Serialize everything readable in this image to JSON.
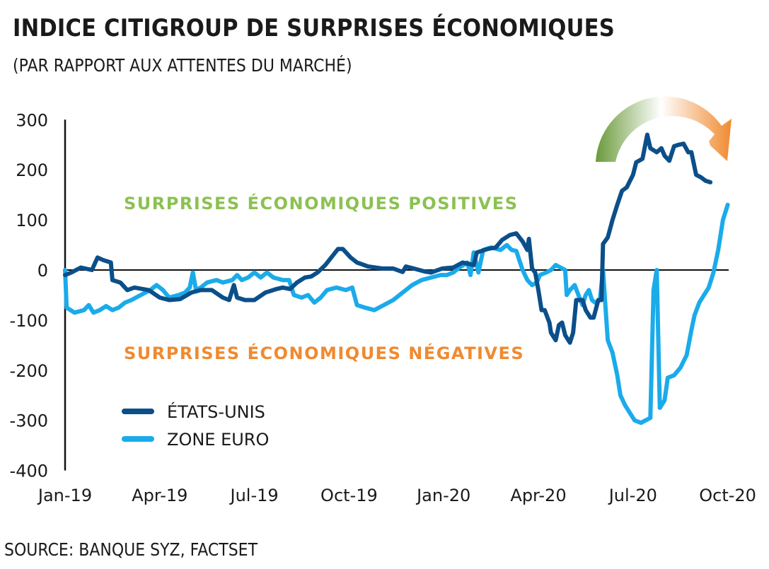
{
  "header": {
    "title": "INDICE CITIGROUP DE SURPRISES ÉCONOMIQUES",
    "subtitle": "(PAR RAPPORT AUX ATTENTES DU MARCHÉ)"
  },
  "footer": {
    "source": "SOURCE: BANQUE SYZ, FACTSET"
  },
  "annotations": {
    "positive": "SURPRISES ÉCONOMIQUES POSITIVES",
    "negative": "SURPRISES ÉCONOMIQUES NÉGATIVES",
    "positive_color": "#8cc152",
    "negative_color": "#f08a30",
    "arrow_icon": "curved-arrow-green-to-orange",
    "arrow_start_color": "#6a9a3a",
    "arrow_end_color": "#f08a30"
  },
  "chart_data": {
    "type": "line",
    "title": "INDICE CITIGROUP DE SURPRISES ÉCONOMIQUES",
    "subtitle": "(PAR RAPPORT AUX ATTENTES DU MARCHÉ)",
    "xlabel": "",
    "ylabel": "",
    "x_unit": "months since Jan-2019",
    "xlim": [
      0,
      21
    ],
    "ylim": [
      -400,
      300
    ],
    "yticks": [
      300,
      200,
      100,
      0,
      -100,
      -200,
      -300,
      -400
    ],
    "ytick_labels": [
      "300",
      "200",
      "100",
      "0",
      "-100",
      "-200",
      "-300",
      "-400"
    ],
    "xticks": [
      0,
      3,
      6,
      9,
      12,
      15,
      18,
      21
    ],
    "xtick_labels": [
      "Jan-19",
      "Apr-19",
      "Jul-19",
      "Oct-19",
      "Jan-20",
      "Apr-20",
      "Jul-20",
      "Oct-20"
    ],
    "grid": false,
    "zero_line": true,
    "legend": {
      "position": "bottom-left"
    },
    "series": [
      {
        "name": "ÉTATS-UNIS",
        "color": "#0b4f8a",
        "points": [
          [
            0,
            -10
          ],
          [
            0.2,
            -5
          ],
          [
            0.5,
            5
          ],
          [
            0.85,
            0
          ],
          [
            1.03,
            25
          ],
          [
            1.2,
            20
          ],
          [
            1.45,
            15
          ],
          [
            1.5,
            -20
          ],
          [
            1.75,
            -25
          ],
          [
            1.97,
            -40
          ],
          [
            2.2,
            -35
          ],
          [
            2.65,
            -40
          ],
          [
            3.0,
            -55
          ],
          [
            3.3,
            -60
          ],
          [
            3.65,
            -58
          ],
          [
            4.0,
            -45
          ],
          [
            4.3,
            -40
          ],
          [
            4.65,
            -40
          ],
          [
            5.0,
            -55
          ],
          [
            5.2,
            -60
          ],
          [
            5.35,
            -30
          ],
          [
            5.45,
            -55
          ],
          [
            5.7,
            -60
          ],
          [
            6.0,
            -60
          ],
          [
            6.35,
            -45
          ],
          [
            6.7,
            -38
          ],
          [
            6.9,
            -35
          ],
          [
            7.13,
            -38
          ],
          [
            7.35,
            -25
          ],
          [
            7.6,
            -15
          ],
          [
            7.8,
            -13
          ],
          [
            8.0,
            -5
          ],
          [
            8.25,
            10
          ],
          [
            8.5,
            30
          ],
          [
            8.65,
            42
          ],
          [
            8.8,
            42
          ],
          [
            9.05,
            25
          ],
          [
            9.25,
            15
          ],
          [
            9.6,
            7
          ],
          [
            10.05,
            3
          ],
          [
            10.4,
            3
          ],
          [
            10.7,
            -4
          ],
          [
            10.8,
            7
          ],
          [
            11.05,
            3
          ],
          [
            11.4,
            -3
          ],
          [
            11.6,
            -5
          ],
          [
            11.95,
            3
          ],
          [
            12.3,
            5
          ],
          [
            12.6,
            15
          ],
          [
            12.95,
            10
          ],
          [
            13.05,
            35
          ],
          [
            13.4,
            42
          ],
          [
            13.65,
            45
          ],
          [
            13.85,
            60
          ],
          [
            14.1,
            70
          ],
          [
            14.3,
            73
          ],
          [
            14.5,
            57
          ],
          [
            14.65,
            40
          ],
          [
            14.7,
            62
          ],
          [
            14.8,
            3
          ],
          [
            14.9,
            -5
          ],
          [
            15.0,
            -40
          ],
          [
            15.1,
            -80
          ],
          [
            15.2,
            -80
          ],
          [
            15.35,
            -105
          ],
          [
            15.4,
            -125
          ],
          [
            15.55,
            -140
          ],
          [
            15.65,
            -110
          ],
          [
            15.75,
            -105
          ],
          [
            15.85,
            -130
          ],
          [
            16.0,
            -145
          ],
          [
            16.1,
            -125
          ],
          [
            16.2,
            -60
          ],
          [
            16.4,
            -60
          ],
          [
            16.5,
            -80
          ],
          [
            16.65,
            -95
          ],
          [
            16.75,
            -95
          ],
          [
            16.9,
            -60
          ],
          [
            17.0,
            -60
          ],
          [
            17.05,
            52
          ],
          [
            17.2,
            65
          ],
          [
            17.35,
            100
          ],
          [
            17.5,
            130
          ],
          [
            17.65,
            158
          ],
          [
            17.8,
            165
          ],
          [
            18.0,
            190
          ],
          [
            18.1,
            215
          ],
          [
            18.3,
            222
          ],
          [
            18.45,
            270
          ],
          [
            18.55,
            243
          ],
          [
            18.75,
            235
          ],
          [
            18.9,
            243
          ],
          [
            19.0,
            228
          ],
          [
            19.15,
            218
          ],
          [
            19.3,
            247
          ],
          [
            19.45,
            250
          ],
          [
            19.6,
            252
          ],
          [
            19.75,
            235
          ],
          [
            19.85,
            235
          ],
          [
            20.0,
            190
          ],
          [
            20.15,
            185
          ],
          [
            20.3,
            178
          ],
          [
            20.45,
            175
          ]
        ]
      },
      {
        "name": "ZONE EURO",
        "color": "#1aabea",
        "points": [
          [
            0,
            0
          ],
          [
            0.05,
            -75
          ],
          [
            0.3,
            -85
          ],
          [
            0.6,
            -80
          ],
          [
            0.75,
            -70
          ],
          [
            0.9,
            -85
          ],
          [
            1.1,
            -80
          ],
          [
            1.3,
            -72
          ],
          [
            1.5,
            -80
          ],
          [
            1.7,
            -75
          ],
          [
            1.9,
            -65
          ],
          [
            2.1,
            -60
          ],
          [
            2.4,
            -50
          ],
          [
            2.7,
            -40
          ],
          [
            2.9,
            -30
          ],
          [
            3.1,
            -40
          ],
          [
            3.3,
            -55
          ],
          [
            3.6,
            -50
          ],
          [
            3.8,
            -45
          ],
          [
            3.95,
            -35
          ],
          [
            4.05,
            -5
          ],
          [
            4.15,
            -40
          ],
          [
            4.3,
            -35
          ],
          [
            4.5,
            -25
          ],
          [
            4.8,
            -20
          ],
          [
            5.0,
            -25
          ],
          [
            5.3,
            -20
          ],
          [
            5.45,
            -10
          ],
          [
            5.6,
            -20
          ],
          [
            5.8,
            -15
          ],
          [
            6.0,
            -5
          ],
          [
            6.2,
            -15
          ],
          [
            6.4,
            -5
          ],
          [
            6.6,
            -15
          ],
          [
            6.9,
            -20
          ],
          [
            7.1,
            -20
          ],
          [
            7.25,
            -50
          ],
          [
            7.5,
            -55
          ],
          [
            7.7,
            -50
          ],
          [
            7.9,
            -65
          ],
          [
            8.1,
            -55
          ],
          [
            8.3,
            -40
          ],
          [
            8.6,
            -35
          ],
          [
            8.9,
            -40
          ],
          [
            9.1,
            -35
          ],
          [
            9.25,
            -70
          ],
          [
            9.5,
            -75
          ],
          [
            9.8,
            -80
          ],
          [
            10.1,
            -70
          ],
          [
            10.4,
            -60
          ],
          [
            10.7,
            -45
          ],
          [
            11.0,
            -30
          ],
          [
            11.3,
            -20
          ],
          [
            11.6,
            -15
          ],
          [
            11.9,
            -10
          ],
          [
            12.1,
            -10
          ],
          [
            12.3,
            -5
          ],
          [
            12.5,
            5
          ],
          [
            12.75,
            15
          ],
          [
            12.85,
            -10
          ],
          [
            12.95,
            35
          ],
          [
            13.1,
            -5
          ],
          [
            13.25,
            40
          ],
          [
            13.5,
            45
          ],
          [
            13.8,
            40
          ],
          [
            14.0,
            50
          ],
          [
            14.15,
            40
          ],
          [
            14.3,
            38
          ],
          [
            14.5,
            0
          ],
          [
            14.65,
            -20
          ],
          [
            14.8,
            -30
          ],
          [
            14.95,
            -25
          ],
          [
            15.05,
            -10
          ],
          [
            15.25,
            -5
          ],
          [
            15.4,
            0
          ],
          [
            15.55,
            10
          ],
          [
            15.7,
            5
          ],
          [
            15.85,
            0
          ],
          [
            15.9,
            -50
          ],
          [
            16.0,
            -40
          ],
          [
            16.15,
            -30
          ],
          [
            16.3,
            -55
          ],
          [
            16.4,
            -70
          ],
          [
            16.5,
            -50
          ],
          [
            16.6,
            -40
          ],
          [
            16.7,
            -60
          ],
          [
            16.8,
            -65
          ],
          [
            16.95,
            -60
          ],
          [
            17.05,
            0
          ],
          [
            17.1,
            -50
          ],
          [
            17.2,
            -140
          ],
          [
            17.35,
            -165
          ],
          [
            17.5,
            -210
          ],
          [
            17.6,
            -250
          ],
          [
            17.75,
            -270
          ],
          [
            17.9,
            -285
          ],
          [
            18.05,
            -300
          ],
          [
            18.25,
            -305
          ],
          [
            18.4,
            -300
          ],
          [
            18.55,
            -295
          ],
          [
            18.65,
            -40
          ],
          [
            18.75,
            0
          ],
          [
            18.85,
            -275
          ],
          [
            19.0,
            -260
          ],
          [
            19.1,
            -215
          ],
          [
            19.3,
            -210
          ],
          [
            19.5,
            -195
          ],
          [
            19.7,
            -170
          ],
          [
            19.85,
            -120
          ],
          [
            19.95,
            -90
          ],
          [
            20.1,
            -65
          ],
          [
            20.25,
            -50
          ],
          [
            20.4,
            -35
          ],
          [
            20.55,
            -5
          ],
          [
            20.7,
            40
          ],
          [
            20.85,
            100
          ],
          [
            21.0,
            130
          ]
        ]
      }
    ]
  },
  "legend_items": [
    {
      "label": "ÉTATS-UNIS",
      "color": "#0b4f8a"
    },
    {
      "label": "ZONE EURO",
      "color": "#1aabea"
    }
  ]
}
